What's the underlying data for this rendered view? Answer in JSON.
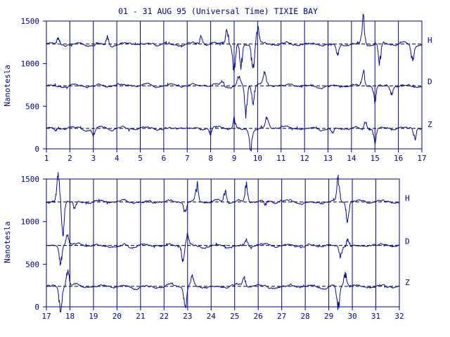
{
  "colors": {
    "ink": "#00008b",
    "trace": "#0a0aaa",
    "background": "#ffffff",
    "reference": "#000000"
  },
  "chart_data": [
    {
      "type": "line",
      "title": "01 - 31 AUG 95 (Universal Time) TIXIE BAY",
      "ylabel": "Nanotesla",
      "xlabel": "",
      "xlim": [
        1,
        17
      ],
      "ylim": [
        0,
        1500
      ],
      "x_ticks": [
        "1",
        "2",
        "3",
        "4",
        "5",
        "6",
        "7",
        "8",
        "9",
        "10",
        "11",
        "12",
        "13",
        "14",
        "15",
        "16",
        "17"
      ],
      "y_ticks": [
        "0",
        "500",
        "1000",
        "1500"
      ],
      "grid": "vertical lines at each day",
      "series": [
        {
          "name": "H",
          "baseline": 1230,
          "disturbances": [
            [
              1.5,
              70
            ],
            [
              3.6,
              110
            ],
            [
              7.6,
              90
            ],
            [
              8.7,
              160
            ],
            [
              9.0,
              -330
            ],
            [
              9.3,
              -250
            ],
            [
              9.8,
              -300
            ],
            [
              10.0,
              200
            ],
            [
              13.4,
              -130
            ],
            [
              14.5,
              300
            ],
            [
              15.2,
              -220
            ],
            [
              16.6,
              -170
            ]
          ]
        },
        {
          "name": "D",
          "baseline": 740,
          "disturbances": [
            [
              8.5,
              60
            ],
            [
              9.2,
              80
            ],
            [
              9.5,
              -320
            ],
            [
              9.8,
              -200
            ],
            [
              10.3,
              120
            ],
            [
              14.5,
              180
            ],
            [
              15.0,
              -180
            ],
            [
              15.7,
              -100
            ]
          ]
        },
        {
          "name": "Z",
          "baseline": 240,
          "disturbances": [
            [
              1.4,
              -40
            ],
            [
              3.0,
              -80
            ],
            [
              8.0,
              -90
            ],
            [
              9.0,
              120
            ],
            [
              9.7,
              -220
            ],
            [
              10.4,
              100
            ],
            [
              13.2,
              -60
            ],
            [
              14.6,
              90
            ],
            [
              15.0,
              -150
            ],
            [
              16.7,
              -120
            ]
          ]
        }
      ]
    },
    {
      "type": "line",
      "title": "",
      "ylabel": "Nanotesla",
      "xlabel": "",
      "xlim": [
        17,
        32
      ],
      "ylim": [
        0,
        1500
      ],
      "x_ticks": [
        "17",
        "18",
        "19",
        "20",
        "21",
        "22",
        "23",
        "24",
        "25",
        "26",
        "27",
        "28",
        "29",
        "30",
        "31",
        "32"
      ],
      "y_ticks": [
        "0",
        "500",
        "1000",
        "1500"
      ],
      "grid": "vertical lines at each day",
      "series": [
        {
          "name": "H",
          "baseline": 1230,
          "disturbances": [
            [
              17.5,
              280
            ],
            [
              17.7,
              -320
            ],
            [
              18.2,
              -80
            ],
            [
              22.9,
              -120
            ],
            [
              23.4,
              200
            ],
            [
              24.6,
              120
            ],
            [
              25.5,
              200
            ],
            [
              26.3,
              -60
            ],
            [
              29.4,
              250
            ],
            [
              29.8,
              -220
            ]
          ]
        },
        {
          "name": "D",
          "baseline": 720,
          "disturbances": [
            [
              17.6,
              -200
            ],
            [
              17.9,
              100
            ],
            [
              22.8,
              -150
            ],
            [
              23.0,
              120
            ],
            [
              25.5,
              80
            ],
            [
              29.5,
              -120
            ],
            [
              29.8,
              80
            ]
          ]
        },
        {
          "name": "Z",
          "baseline": 240,
          "disturbances": [
            [
              17.6,
              -300
            ],
            [
              17.9,
              200
            ],
            [
              22.9,
              -220
            ],
            [
              23.2,
              100
            ],
            [
              25.4,
              90
            ],
            [
              29.4,
              -250
            ],
            [
              29.7,
              150
            ]
          ]
        }
      ]
    }
  ]
}
